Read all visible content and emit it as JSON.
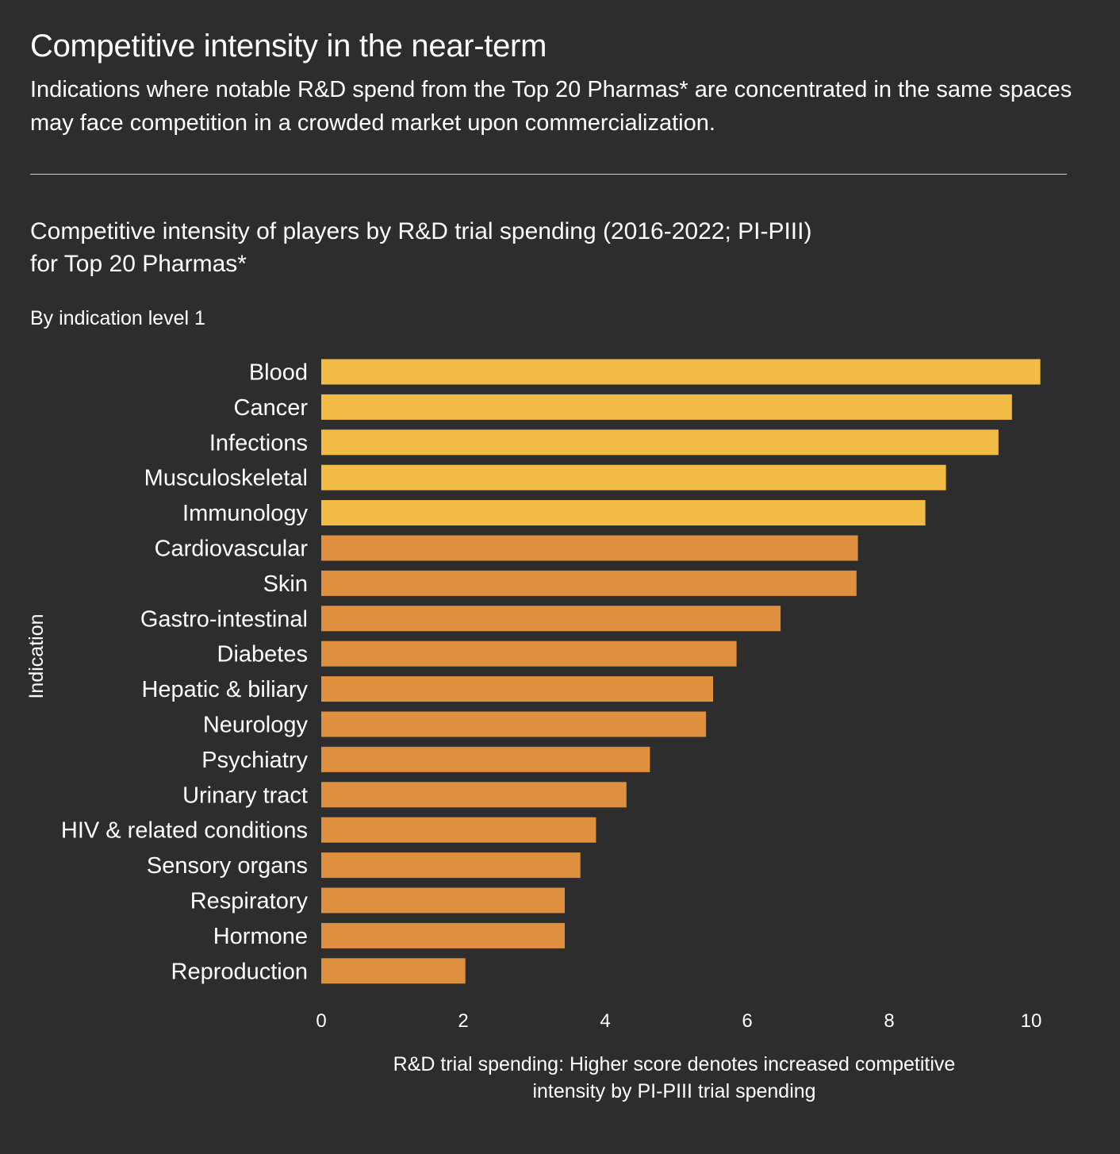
{
  "header": {
    "title": "Competitive intensity in the near-term",
    "subtitle": "Indications where notable R&D spend from the Top 20 Pharmas* are concentrated in the same spaces may face competition in a crowded market upon commercialization."
  },
  "chart_data": {
    "type": "bar",
    "orientation": "horizontal",
    "title": "Competitive intensity of players by R&D trial spending (2016-2022; PI-PIII) for Top 20 Pharmas*",
    "subtitle": "By indication level 1",
    "ylabel": "Indication",
    "xlabel": "R&D trial spending: Higher score denotes increased competitive intensity by PI-PIII trial spending",
    "xlim": [
      0,
      10
    ],
    "x_ticks": [
      0,
      2,
      4,
      6,
      8,
      10
    ],
    "grid": false,
    "categories": [
      "Blood",
      "Cancer",
      "Infections",
      "Musculoskeletal",
      "Immunology",
      "Cardiovascular",
      "Skin",
      "Gastro-intestinal",
      "Diabetes",
      "Hepatic & biliary",
      "Neurology",
      "Psychiatry",
      "Urinary tract",
      "HIV & related conditions",
      "Sensory organs",
      "Respiratory",
      "Hormone",
      "Reproduction"
    ],
    "values": [
      10.13,
      9.73,
      9.54,
      8.8,
      8.51,
      7.56,
      7.54,
      6.47,
      5.85,
      5.52,
      5.42,
      4.63,
      4.3,
      3.87,
      3.65,
      3.43,
      3.43,
      2.03
    ],
    "colors": {
      "high": "#f2bb46",
      "standard": "#df903f"
    },
    "highlight_top_n": 5
  }
}
